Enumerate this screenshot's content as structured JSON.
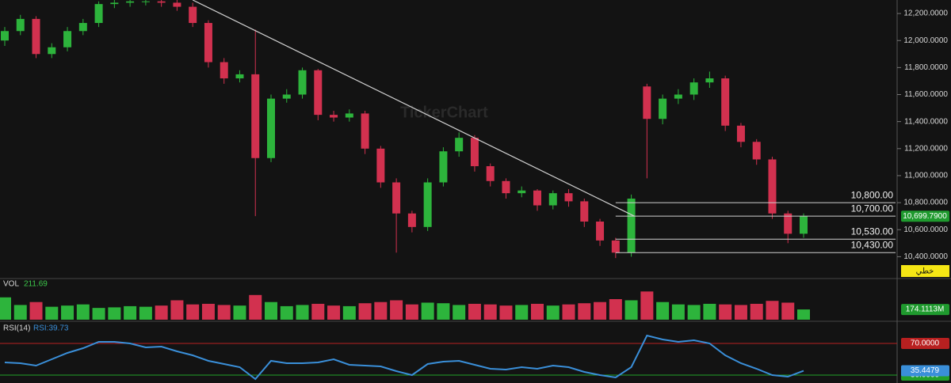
{
  "chart_data": [
    {
      "type": "candlestick",
      "watermark": "TickerChart",
      "open": [
        12000,
        12070,
        12160,
        11900,
        11950,
        12070,
        12130,
        12270,
        12280,
        12290,
        12290,
        12280,
        12250,
        12130,
        11840,
        11720,
        11750,
        11130,
        11570,
        11600,
        11780,
        11450,
        11430,
        11460,
        11200,
        10950,
        10720,
        10620,
        10950,
        11180,
        11280,
        11070,
        10960,
        10870,
        10890,
        10780,
        10870,
        10810,
        10660,
        10520,
        10430,
        11660,
        11420,
        11570,
        11600,
        11690,
        11720,
        11370,
        11250,
        11120,
        10720,
        10570
      ],
      "high": [
        12100,
        12190,
        12180,
        11980,
        12100,
        12160,
        12290,
        12300,
        12300,
        12300,
        12300,
        12300,
        12280,
        12150,
        11870,
        11780,
        12080,
        11600,
        11640,
        11800,
        11790,
        11480,
        11490,
        11480,
        11220,
        10980,
        10740,
        10980,
        11210,
        11320,
        11300,
        11090,
        10980,
        10920,
        10900,
        10890,
        10900,
        10830,
        10680,
        10540,
        10860,
        11680,
        11600,
        11640,
        11720,
        11770,
        11740,
        11390,
        11270,
        11140,
        10740,
        10720
      ],
      "low": [
        11960,
        12040,
        11870,
        11870,
        11920,
        12040,
        12100,
        12240,
        12250,
        12260,
        12250,
        12220,
        12100,
        11800,
        11680,
        11690,
        10700,
        11100,
        11540,
        11570,
        11410,
        11400,
        11400,
        11160,
        10910,
        10430,
        10580,
        10590,
        10920,
        11140,
        11030,
        10920,
        10830,
        10840,
        10740,
        10750,
        10770,
        10620,
        10480,
        10390,
        10400,
        10980,
        11380,
        11530,
        11560,
        11650,
        11330,
        11210,
        11080,
        10680,
        10500,
        10540
      ],
      "close": [
        12070,
        12160,
        11900,
        11950,
        12070,
        12130,
        12270,
        12280,
        12290,
        12290,
        12280,
        12250,
        12130,
        11840,
        11720,
        11750,
        11130,
        11570,
        11600,
        11780,
        11450,
        11430,
        11460,
        11200,
        10950,
        10720,
        10620,
        10950,
        11180,
        11280,
        11070,
        10960,
        10870,
        10890,
        10780,
        10870,
        10810,
        10660,
        10520,
        10430,
        10830,
        11420,
        11570,
        11600,
        11690,
        11720,
        11370,
        11250,
        11120,
        10720,
        10570,
        10699.79
      ],
      "up_color": "#2db43c",
      "down_color": "#d2314f",
      "ylim": [
        10250,
        12300
      ],
      "yticks": [
        {
          "value": 10400,
          "label": "10,400.0000"
        },
        {
          "value": 10600,
          "label": "10,600.0000"
        },
        {
          "value": 10800,
          "label": "10,800.0000"
        },
        {
          "value": 11000,
          "label": "11,000.0000"
        },
        {
          "value": 11200,
          "label": "11,200.0000"
        },
        {
          "value": 11400,
          "label": "11,400.0000"
        },
        {
          "value": 11600,
          "label": "11,600.0000"
        },
        {
          "value": 11800,
          "label": "11,800.0000"
        },
        {
          "value": 12000,
          "label": "12,000.0000"
        },
        {
          "value": 12200,
          "label": "12,200.0000"
        }
      ],
      "levels": [
        {
          "value": 10800,
          "label": "10,800.00"
        },
        {
          "value": 10700,
          "label": "10,700.00"
        },
        {
          "value": 10530,
          "label": "10,530.00"
        },
        {
          "value": 10430,
          "label": "10,430.00"
        }
      ],
      "trendline": {
        "x": [
          12,
          40.2
        ],
        "values": [
          12300,
          10700
        ]
      },
      "last_label": "10,699.7900",
      "mode_label": "خطي"
    },
    {
      "type": "bar",
      "title": "VOL",
      "subtitle": "211.69",
      "values": [
        380,
        250,
        300,
        220,
        240,
        260,
        200,
        210,
        230,
        220,
        240,
        330,
        260,
        270,
        250,
        240,
        420,
        300,
        230,
        250,
        270,
        240,
        230,
        280,
        300,
        330,
        260,
        290,
        280,
        250,
        270,
        260,
        240,
        250,
        270,
        240,
        260,
        280,
        300,
        350,
        330,
        480,
        300,
        260,
        250,
        270,
        260,
        250,
        270,
        320,
        290,
        174.1113
      ],
      "ylim": [
        0,
        700
      ],
      "last_label": "174.1113M"
    },
    {
      "type": "line",
      "title": "RSI(14)",
      "subtitle": "RSI:39.73",
      "color": "#3a8fd9",
      "values": [
        46,
        45,
        42,
        50,
        58,
        64,
        72,
        72,
        70,
        65,
        66,
        60,
        55,
        48,
        44,
        40,
        25,
        48,
        45,
        45,
        46,
        50,
        43,
        42,
        41,
        35,
        30,
        44,
        47,
        48,
        43,
        38,
        37,
        40,
        38,
        42,
        40,
        34,
        30,
        27,
        40,
        80,
        75,
        72,
        74,
        70,
        55,
        45,
        38,
        30,
        28,
        35.4479
      ],
      "ylim": [
        20,
        96
      ],
      "yticks": [
        {
          "value": 70,
          "label": "70.0000"
        },
        {
          "value": 30,
          "label": "30.0000"
        }
      ],
      "tick_colors": [
        "#b82020",
        "#22a02a"
      ],
      "last_label": "35.4479"
    }
  ]
}
